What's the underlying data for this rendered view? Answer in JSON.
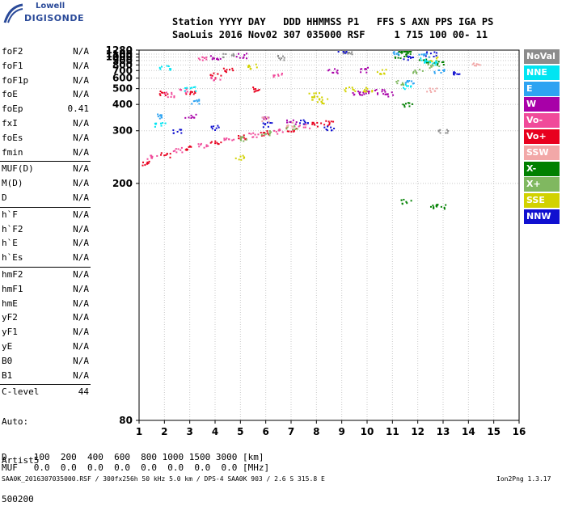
{
  "logo": {
    "line1": "Lowell",
    "line2": "DIGISONDE"
  },
  "header": {
    "row1": "Station YYYY DAY   DDD HHMMSS P1   FFS S AXN PPS IGA PS",
    "row2": "SaoLuis 2016 Nov02 307 035000 RSF     1 715 100 00- 11"
  },
  "params": [
    {
      "name": "foF2",
      "value": "N/A"
    },
    {
      "name": "foF1",
      "value": "N/A"
    },
    {
      "name": "foF1p",
      "value": "N/A"
    },
    {
      "name": "foE",
      "value": "N/A"
    },
    {
      "name": "foEp",
      "value": "0.41"
    },
    {
      "name": "fxI",
      "value": "N/A"
    },
    {
      "name": "foEs",
      "value": "N/A"
    },
    {
      "name": "fmin",
      "value": "N/A"
    },
    {
      "name": "MUF(D)",
      "value": "N/A"
    },
    {
      "name": "M(D)",
      "value": "N/A"
    },
    {
      "name": "D",
      "value": "N/A"
    },
    {
      "name": "h`F",
      "value": "N/A"
    },
    {
      "name": "h`F2",
      "value": "N/A"
    },
    {
      "name": "h`E",
      "value": "N/A"
    },
    {
      "name": "h`Es",
      "value": "N/A"
    },
    {
      "name": "hmF2",
      "value": "N/A"
    },
    {
      "name": "hmF1",
      "value": "N/A"
    },
    {
      "name": "hmE",
      "value": "N/A"
    },
    {
      "name": "yF2",
      "value": "N/A"
    },
    {
      "name": "yF1",
      "value": "N/A"
    },
    {
      "name": "yE",
      "value": "N/A"
    },
    {
      "name": "B0",
      "value": "N/A"
    },
    {
      "name": "B1",
      "value": "N/A"
    },
    {
      "name": "C-level",
      "value": "44"
    }
  ],
  "auto": {
    "line1": "Auto:",
    "line2": "Artist5",
    "line3": "500200"
  },
  "legend": [
    {
      "label": "NoVal",
      "color": "#8c8c8c"
    },
    {
      "label": "NNE",
      "color": "#00e5f2"
    },
    {
      "label": "E",
      "color": "#2ea3f2"
    },
    {
      "label": "W",
      "color": "#a800a8"
    },
    {
      "label": "Vo-",
      "color": "#f04a9a"
    },
    {
      "label": "Vo+",
      "color": "#e8001e"
    },
    {
      "label": "SSW",
      "color": "#f2a8a8"
    },
    {
      "label": "X-",
      "color": "#008000"
    },
    {
      "label": "X+",
      "color": "#80b860"
    },
    {
      "label": "SSE",
      "color": "#d2d200"
    },
    {
      "label": "NNW",
      "color": "#1010d0"
    }
  ],
  "footer": {
    "d_row": "D     100  200  400  600  800 1000 1500 3000 [km]",
    "muf_row": "MUF   0.0  0.0  0.0  0.0  0.0  0.0  0.0  0.0 [MHz]",
    "info": "SAA0K_2016307035000.RSF / 300fx256h 50 kHz 5.0 km / DPS-4 SAA0K 903 / 2.6 S 315.8 E",
    "version": "Ion2Png 1.3.17"
  },
  "chart_data": {
    "type": "scatter",
    "x_ticks": [
      "1",
      "2",
      "3",
      "4",
      "5",
      "6",
      "7",
      "8",
      "9",
      "10",
      "11",
      "12",
      "13",
      "14",
      "15",
      "16"
    ],
    "y_ticks": [
      "80",
      "200",
      "300",
      "400",
      "500",
      "600",
      "700",
      "800",
      "900",
      "1000",
      "1100",
      "1280"
    ],
    "xlim": [
      1,
      16
    ],
    "y_axis": "reciprocal (1/h) height scale",
    "ylim": [
      80,
      1280
    ],
    "grid": true,
    "series": [
      {
        "name": "Vo+",
        "color": "#e8001e",
        "points": [
          [
            1.3,
            230
          ],
          [
            2,
            245
          ],
          [
            3,
            260
          ],
          [
            4,
            270
          ],
          [
            5,
            285
          ],
          [
            6,
            295
          ],
          [
            7,
            305
          ],
          [
            8,
            320
          ],
          [
            8.5,
            325
          ],
          [
            2,
            470
          ],
          [
            3,
            480
          ],
          [
            5.5,
            500
          ],
          [
            4,
            640
          ],
          [
            4.5,
            720
          ]
        ]
      },
      {
        "name": "Vo-",
        "color": "#f04a9a",
        "points": [
          [
            1.5,
            240
          ],
          [
            2.5,
            255
          ],
          [
            3.5,
            265
          ],
          [
            4.5,
            280
          ],
          [
            5.5,
            290
          ],
          [
            6.5,
            300
          ],
          [
            7.5,
            315
          ],
          [
            2.2,
            460
          ],
          [
            2.8,
            490
          ],
          [
            4,
            600
          ],
          [
            3.5,
            980
          ],
          [
            6.5,
            640
          ]
        ]
      },
      {
        "name": "W",
        "color": "#a800a8",
        "points": [
          [
            9.5,
            470
          ],
          [
            10,
            475
          ],
          [
            10.5,
            480
          ],
          [
            10.9,
            465
          ],
          [
            8.6,
            700
          ],
          [
            9.8,
            720
          ],
          [
            3,
            350
          ],
          [
            6,
            340
          ],
          [
            7,
            330
          ],
          [
            4,
            1000
          ],
          [
            5,
            1060
          ]
        ]
      },
      {
        "name": "NNW",
        "color": "#1010d0",
        "points": [
          [
            2.5,
            300
          ],
          [
            4,
            310
          ],
          [
            6,
            320
          ],
          [
            7.5,
            330
          ],
          [
            8.5,
            310
          ],
          [
            9,
            1230
          ],
          [
            11.6,
            1000
          ],
          [
            12.5,
            1120
          ],
          [
            13.5,
            660
          ]
        ]
      },
      {
        "name": "SSE",
        "color": "#d2d200",
        "points": [
          [
            7.9,
            460
          ],
          [
            8,
            440
          ],
          [
            8.2,
            420
          ],
          [
            9.3,
            500
          ],
          [
            10,
            495
          ],
          [
            10.5,
            690
          ],
          [
            5.5,
            780
          ],
          [
            4.9,
            240
          ],
          [
            12.6,
            950
          ]
        ]
      },
      {
        "name": "X-",
        "color": "#008000",
        "points": [
          [
            11.4,
            1280
          ],
          [
            11.5,
            1200
          ],
          [
            11.3,
            1050
          ],
          [
            12.2,
            900
          ],
          [
            12.8,
            850
          ],
          [
            11.6,
            400
          ],
          [
            11.5,
            180
          ],
          [
            12.5,
            175
          ],
          [
            12.9,
            175
          ]
        ]
      },
      {
        "name": "X+",
        "color": "#80b860",
        "points": [
          [
            5,
            280
          ],
          [
            6,
            295
          ],
          [
            7,
            310
          ],
          [
            11.3,
            560
          ],
          [
            12,
            700
          ],
          [
            12.6,
            790
          ]
        ]
      },
      {
        "name": "NNE",
        "color": "#00e5f2",
        "points": [
          [
            1.8,
            320
          ],
          [
            2,
            760
          ],
          [
            3,
            500
          ],
          [
            11.6,
            520
          ],
          [
            12.3,
            920
          ],
          [
            12.5,
            850
          ]
        ]
      },
      {
        "name": "E",
        "color": "#2ea3f2",
        "points": [
          [
            1.9,
            350
          ],
          [
            3.2,
            420
          ],
          [
            11.2,
            1160
          ],
          [
            11.6,
            560
          ],
          [
            12.2,
            1100
          ],
          [
            12.8,
            700
          ]
        ]
      },
      {
        "name": "SSW",
        "color": "#f2a8a8",
        "points": [
          [
            6,
            340
          ],
          [
            7,
            320
          ],
          [
            12.5,
            490
          ],
          [
            14.3,
            800
          ]
        ]
      },
      {
        "name": "NoVal",
        "color": "#8c8c8c",
        "points": [
          [
            4.5,
            1060
          ],
          [
            6.5,
            1000
          ],
          [
            9.2,
            1200
          ],
          [
            13,
            300
          ]
        ]
      }
    ]
  }
}
